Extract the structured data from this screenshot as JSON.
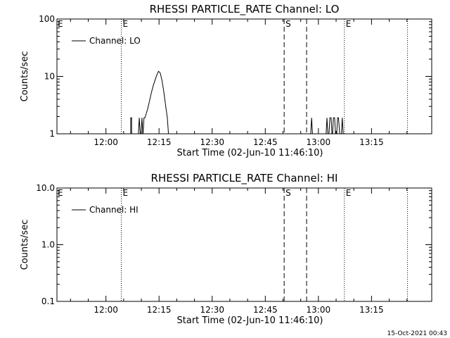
{
  "footer_timestamp": "15-Oct-2021 00:43",
  "chart_data": [
    {
      "type": "line",
      "title": "RHESSI PARTICLE_RATE Channel: LO",
      "xlabel": "Start Time (02-Jun-10 11:46:10)",
      "ylabel": "Counts/sec",
      "yscale": "log",
      "ylim": [
        1,
        100
      ],
      "yticks": [
        {
          "v": 1,
          "label": "1"
        },
        {
          "v": 10,
          "label": "10"
        },
        {
          "v": 100,
          "label": "100"
        }
      ],
      "xlim": [
        "11:46:10",
        "13:32:00"
      ],
      "xticks": [
        {
          "t": "12:00",
          "label": "12:00"
        },
        {
          "t": "12:15",
          "label": "12:15"
        },
        {
          "t": "12:30",
          "label": "12:30"
        },
        {
          "t": "12:45",
          "label": "12:45"
        },
        {
          "t": "13:00",
          "label": "13:00"
        },
        {
          "t": "13:15",
          "label": "13:15"
        }
      ],
      "legend": {
        "placement": "top-left",
        "entries": [
          "Channel: LO"
        ]
      },
      "markers": [
        {
          "t": "12:04:20",
          "style": "dotted",
          "label": "E"
        },
        {
          "t": "12:50:20",
          "style": "dashed",
          "label": "S"
        },
        {
          "t": "12:56:40",
          "style": "dashed",
          "label": ""
        },
        {
          "t": "13:07:20",
          "style": "dotted",
          "label": "E"
        },
        {
          "t": "13:25:10",
          "style": "dotted",
          "label": ""
        }
      ],
      "edge_labels": [
        {
          "side": "left",
          "label": "E"
        }
      ],
      "series": [
        {
          "name": "Channel: LO",
          "segments": [
            [
              [
                "12:07:00",
                1
              ],
              [
                "12:07:00",
                1.9
              ],
              [
                "12:07:15",
                1.9
              ],
              [
                "12:07:15",
                1
              ]
            ],
            [
              [
                "12:09:10",
                1
              ],
              [
                "12:09:25",
                1.9
              ],
              [
                "12:09:40",
                1
              ]
            ],
            [
              [
                "12:09:55",
                1
              ],
              [
                "12:10:10",
                1.9
              ],
              [
                "12:10:25",
                1
              ]
            ],
            [
              [
                "12:10:30",
                1
              ],
              [
                "12:10:45",
                1.9
              ],
              [
                "12:11:00",
                1.9
              ],
              [
                "12:11:20",
                2.2
              ],
              [
                "12:11:50",
                2.8
              ],
              [
                "12:12:20",
                3.8
              ],
              [
                "12:12:50",
                5.2
              ],
              [
                "12:13:20",
                6.8
              ],
              [
                "12:13:50",
                8.5
              ],
              [
                "12:14:20",
                10.5
              ],
              [
                "12:14:50",
                12.3
              ],
              [
                "12:15:20",
                11.5
              ],
              [
                "12:15:50",
                8.5
              ],
              [
                "12:16:20",
                5.5
              ],
              [
                "12:16:50",
                3.2
              ],
              [
                "12:17:20",
                1.9
              ],
              [
                "12:17:40",
                1
              ]
            ],
            [
              [
                "12:57:50",
                1
              ],
              [
                "12:58:05",
                1.9
              ],
              [
                "12:58:20",
                1
              ]
            ],
            [
              [
                "13:02:10",
                1
              ],
              [
                "13:02:25",
                1.9
              ],
              [
                "13:02:40",
                1
              ]
            ],
            [
              [
                "13:03:00",
                1
              ],
              [
                "13:03:15",
                1.9
              ],
              [
                "13:03:35",
                1.9
              ],
              [
                "13:03:50",
                1
              ]
            ],
            [
              [
                "13:04:00",
                1
              ],
              [
                "13:04:15",
                1.9
              ],
              [
                "13:04:35",
                1.9
              ],
              [
                "13:04:50",
                1
              ]
            ],
            [
              [
                "13:05:10",
                1
              ],
              [
                "13:05:25",
                1.9
              ],
              [
                "13:05:40",
                1.9
              ],
              [
                "13:06:00",
                1
              ]
            ],
            [
              [
                "13:06:30",
                1
              ],
              [
                "13:06:45",
                1.9
              ],
              [
                "13:07:00",
                1
              ]
            ]
          ]
        }
      ]
    },
    {
      "type": "line",
      "title": "RHESSI PARTICLE_RATE Channel: HI",
      "xlabel": "Start Time (02-Jun-10 11:46:10)",
      "ylabel": "Counts/sec",
      "yscale": "log",
      "ylim": [
        0.1,
        10
      ],
      "yticks": [
        {
          "v": 0.1,
          "label": "0.1"
        },
        {
          "v": 1,
          "label": "1.0"
        },
        {
          "v": 10,
          "label": "10.0"
        }
      ],
      "xlim": [
        "11:46:10",
        "13:32:00"
      ],
      "xticks": [
        {
          "t": "12:00",
          "label": "12:00"
        },
        {
          "t": "12:15",
          "label": "12:15"
        },
        {
          "t": "12:30",
          "label": "12:30"
        },
        {
          "t": "12:45",
          "label": "12:45"
        },
        {
          "t": "13:00",
          "label": "13:00"
        },
        {
          "t": "13:15",
          "label": "13:15"
        }
      ],
      "legend": {
        "placement": "top-left",
        "entries": [
          "Channel: HI"
        ]
      },
      "markers": [
        {
          "t": "12:04:20",
          "style": "dotted",
          "label": "E"
        },
        {
          "t": "12:50:20",
          "style": "dashed",
          "label": "S"
        },
        {
          "t": "12:56:40",
          "style": "dashed",
          "label": ""
        },
        {
          "t": "13:07:20",
          "style": "dotted",
          "label": "E"
        },
        {
          "t": "13:25:10",
          "style": "dotted",
          "label": ""
        }
      ],
      "edge_labels": [
        {
          "side": "left",
          "label": "E"
        }
      ],
      "series": [
        {
          "name": "Channel: HI",
          "segments": []
        }
      ]
    }
  ]
}
